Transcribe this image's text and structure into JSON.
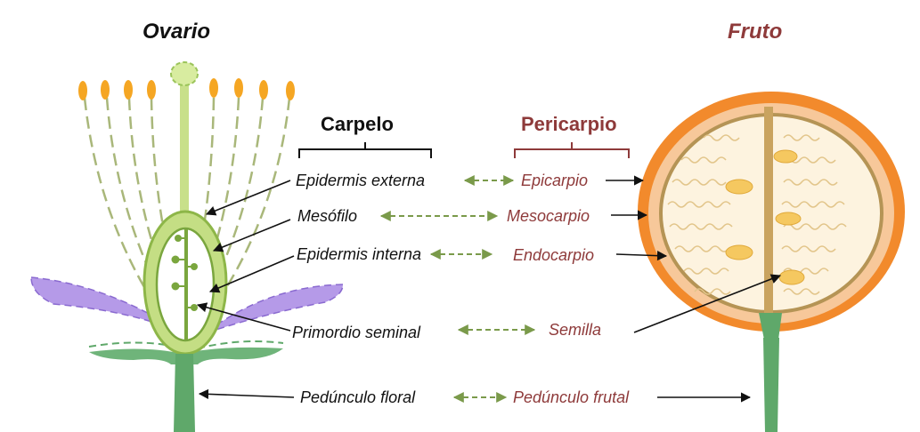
{
  "titles": {
    "ovario": "Ovario",
    "fruto": "Fruto"
  },
  "headers": {
    "carpelo": "Carpelo",
    "pericarpio": "Pericarpio"
  },
  "flower_labels": {
    "epidermis_externa": "Epidermis externa",
    "mesofilo": "Mesófilo",
    "epidermis_interna": "Epidermis interna",
    "primordio_seminal": "Primordio seminal",
    "pedunculo_floral": "Pedúnculo floral"
  },
  "fruit_labels": {
    "epicarpio": "Epicarpio",
    "mesocarpio": "Mesocarpio",
    "endocarpio": "Endocarpio",
    "semilla": "Semilla",
    "pedunculo_frutal": "Pedúnculo frutal"
  },
  "colors": {
    "pericarp_red": "#8e3a3a",
    "arrow_green": "#7a9a4a",
    "stem_green": "#5fa86a",
    "ovary_green": "#9bc45a",
    "petal_purple": "#b59ae8",
    "fruit_orange": "#f28a2c",
    "fruit_mesocarp": "#f7c89a",
    "seed_yellow": "#f5c860",
    "anther_orange": "#f5a623"
  }
}
